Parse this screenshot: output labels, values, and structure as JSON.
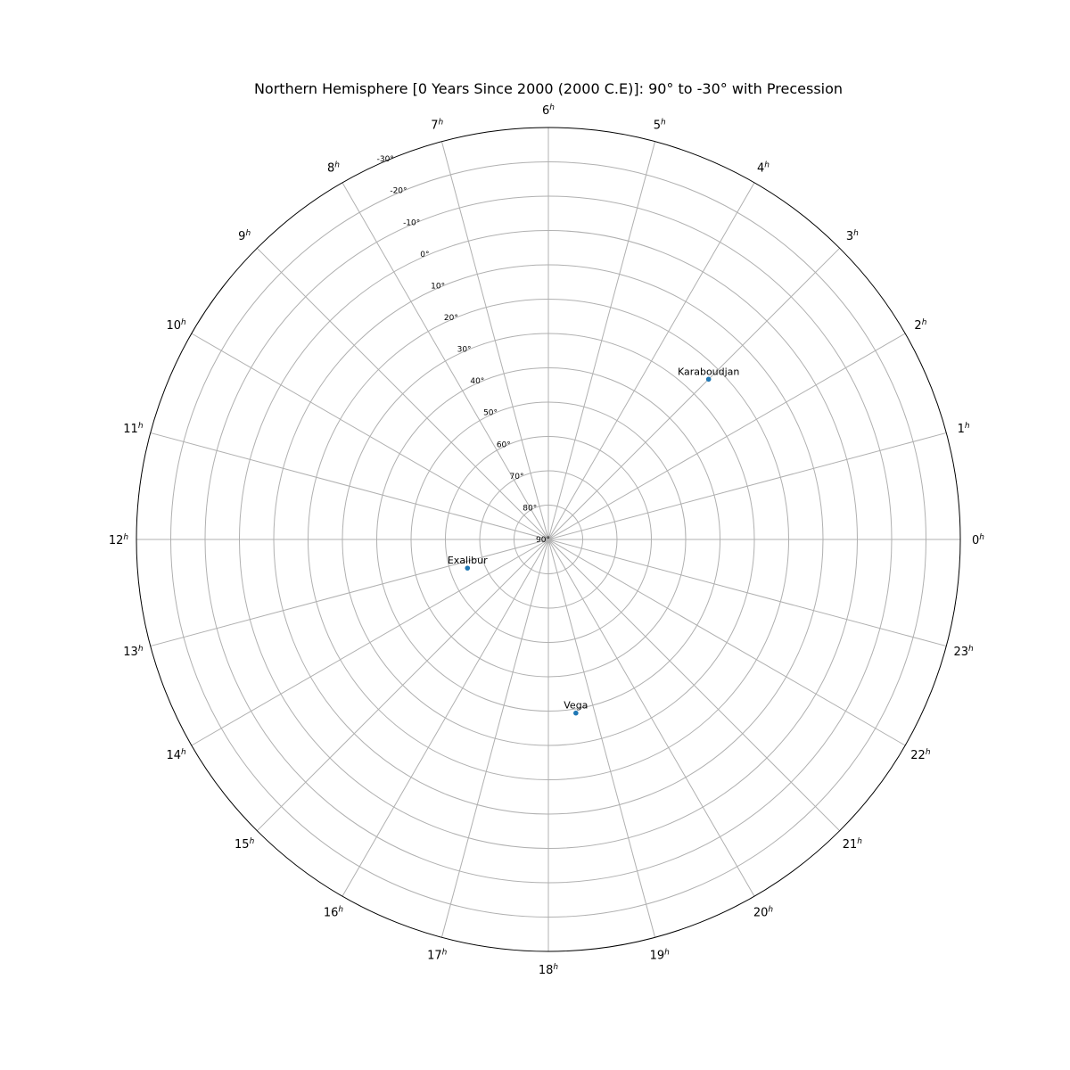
{
  "chart_data": {
    "type": "scatter",
    "projection": "polar",
    "title": "Northern Hemisphere [0 Years Since 2000 (2000 C.E)]: 90° to -30° with Precession",
    "ra_tick_labels": [
      "0",
      "1",
      "2",
      "3",
      "4",
      "5",
      "6",
      "7",
      "8",
      "9",
      "10",
      "11",
      "12",
      "13",
      "14",
      "15",
      "16",
      "17",
      "18",
      "19",
      "20",
      "21",
      "22",
      "23"
    ],
    "ra_tick_suffix": "h",
    "dec_range": [
      90,
      -30
    ],
    "dec_ticks": [
      90,
      80,
      70,
      60,
      50,
      40,
      30,
      20,
      10,
      0,
      -10,
      -20,
      -30
    ],
    "dec_tick_labels": [
      "90°",
      "80°",
      "70°",
      "60°",
      "50°",
      "40°",
      "30°",
      "20°",
      "10°",
      "0°",
      "-10°",
      "-20°",
      "-30°"
    ],
    "grid": true,
    "points": [
      {
        "name": "Karaboudjan",
        "ra_hours": 3.0,
        "dec": 24
      },
      {
        "name": "Exalibur",
        "ra_hours": 13.3,
        "dec": 65
      },
      {
        "name": "Vega",
        "ra_hours": 18.6,
        "dec": 38.8
      }
    ],
    "colors": {
      "grid": "#b0b0b0",
      "marker": "#1f77b4",
      "frame": "#000000"
    }
  }
}
